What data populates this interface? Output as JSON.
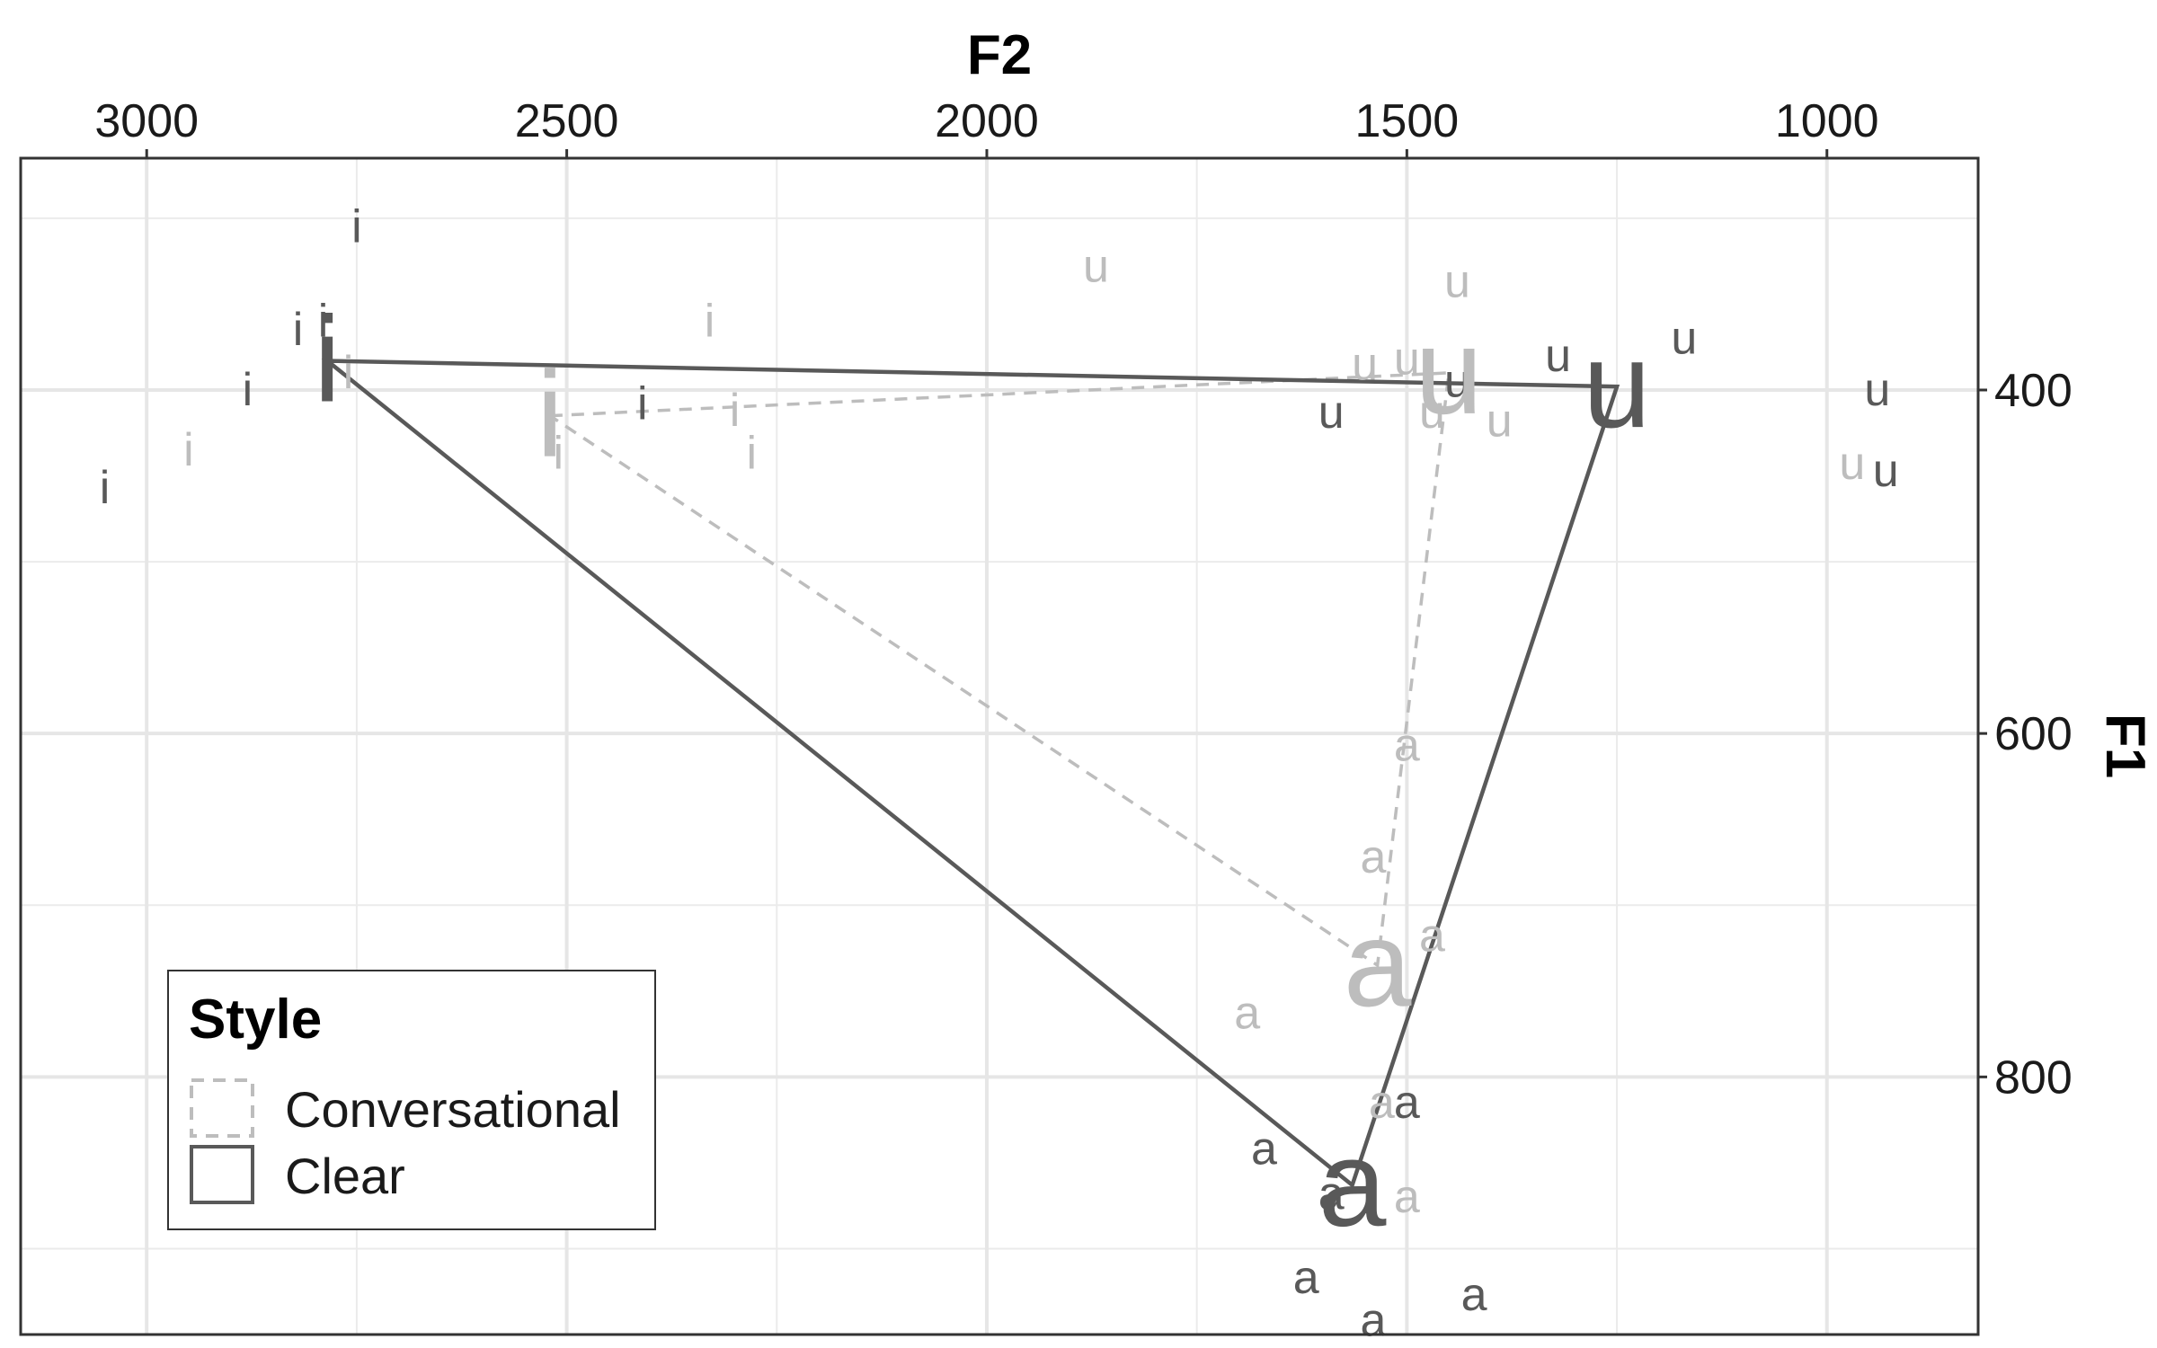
{
  "chart_data": {
    "type": "scatter",
    "xlabel": "F2",
    "ylabel": "F1",
    "x_reversed": true,
    "y_reversed": true,
    "x_axis_position": "top",
    "y_axis_position": "right",
    "xlim": [
      3150,
      820
    ],
    "ylim": [
      265,
      950
    ],
    "x_ticks": [
      3000,
      2500,
      2000,
      1500,
      1000
    ],
    "x_tick_labels": [
      "3000",
      "2500",
      "2000",
      "1500",
      "1000"
    ],
    "y_ticks": [
      400,
      600,
      800
    ],
    "y_tick_labels": [
      "400",
      "600",
      "800"
    ],
    "x_minor": [
      2750,
      2250,
      1750,
      1250
    ],
    "y_minor": [
      300,
      500,
      700,
      900
    ],
    "grid": true,
    "legend": {
      "title": "Style",
      "position": "bottom-left",
      "entries": [
        {
          "label": "Conversational",
          "color": "#bdbdbd",
          "dash": "dashed"
        },
        {
          "label": "Clear",
          "color": "#595959",
          "dash": "solid"
        }
      ]
    },
    "series": [
      {
        "name": "Conversational",
        "color": "#bdbdbd",
        "dash": "dashed",
        "means": [
          {
            "vowel": "i",
            "x": 2520,
            "y": 415
          },
          {
            "vowel": "u",
            "x": 1450,
            "y": 390
          },
          {
            "vowel": "a",
            "x": 1535,
            "y": 735
          }
        ],
        "points": [
          {
            "vowel": "i",
            "x": 2330,
            "y": 360
          },
          {
            "vowel": "i",
            "x": 2300,
            "y": 412
          },
          {
            "vowel": "i",
            "x": 2280,
            "y": 437
          },
          {
            "vowel": "i",
            "x": 2760,
            "y": 390
          },
          {
            "vowel": "i",
            "x": 2950,
            "y": 435
          },
          {
            "vowel": "i",
            "x": 2510,
            "y": 437
          },
          {
            "vowel": "u",
            "x": 1870,
            "y": 328
          },
          {
            "vowel": "u",
            "x": 1440,
            "y": 337
          },
          {
            "vowel": "u",
            "x": 1550,
            "y": 385
          },
          {
            "vowel": "u",
            "x": 1500,
            "y": 382
          },
          {
            "vowel": "u",
            "x": 1390,
            "y": 418
          },
          {
            "vowel": "u",
            "x": 1470,
            "y": 413
          },
          {
            "vowel": "u",
            "x": 970,
            "y": 443
          },
          {
            "vowel": "a",
            "x": 1500,
            "y": 607
          },
          {
            "vowel": "a",
            "x": 1540,
            "y": 672
          },
          {
            "vowel": "a",
            "x": 1470,
            "y": 718
          },
          {
            "vowel": "a",
            "x": 1690,
            "y": 763
          },
          {
            "vowel": "a",
            "x": 1530,
            "y": 815
          },
          {
            "vowel": "a",
            "x": 1500,
            "y": 870
          }
        ]
      },
      {
        "name": "Clear",
        "color": "#595959",
        "dash": "solid",
        "means": [
          {
            "vowel": "i",
            "x": 2785,
            "y": 383
          },
          {
            "vowel": "u",
            "x": 1250,
            "y": 398
          },
          {
            "vowel": "a",
            "x": 1565,
            "y": 863
          }
        ],
        "points": [
          {
            "vowel": "i",
            "x": 2750,
            "y": 305
          },
          {
            "vowel": "i",
            "x": 2820,
            "y": 365
          },
          {
            "vowel": "i",
            "x": 2790,
            "y": 360
          },
          {
            "vowel": "i",
            "x": 2880,
            "y": 400
          },
          {
            "vowel": "i",
            "x": 2410,
            "y": 408
          },
          {
            "vowel": "i",
            "x": 3050,
            "y": 457
          },
          {
            "vowel": "u",
            "x": 1320,
            "y": 380
          },
          {
            "vowel": "u",
            "x": 1170,
            "y": 370
          },
          {
            "vowel": "u",
            "x": 1440,
            "y": 395
          },
          {
            "vowel": "u",
            "x": 1590,
            "y": 413
          },
          {
            "vowel": "u",
            "x": 940,
            "y": 400
          },
          {
            "vowel": "u",
            "x": 930,
            "y": 447
          },
          {
            "vowel": "a",
            "x": 1500,
            "y": 815
          },
          {
            "vowel": "a",
            "x": 1670,
            "y": 842
          },
          {
            "vowel": "a",
            "x": 1590,
            "y": 868
          },
          {
            "vowel": "a",
            "x": 1620,
            "y": 917
          },
          {
            "vowel": "a",
            "x": 1540,
            "y": 942
          },
          {
            "vowel": "a",
            "x": 1420,
            "y": 927
          }
        ]
      }
    ]
  }
}
